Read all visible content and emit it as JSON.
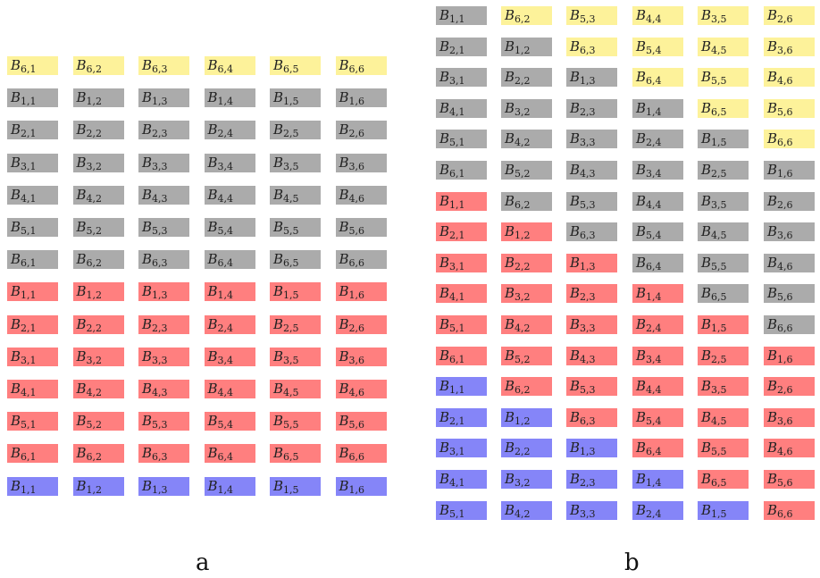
{
  "colors": {
    "yellow": "#fdf29a",
    "gray": "#ababab",
    "red": "#ff7f7f",
    "blue": "#8585f8"
  },
  "panel_a": {
    "label": "a",
    "rows": [
      {
        "color": "yellow",
        "cells": [
          [
            6,
            1
          ],
          [
            6,
            2
          ],
          [
            6,
            3
          ],
          [
            6,
            4
          ],
          [
            6,
            5
          ],
          [
            6,
            6
          ]
        ]
      },
      {
        "color": "gray",
        "cells": [
          [
            1,
            1
          ],
          [
            1,
            2
          ],
          [
            1,
            3
          ],
          [
            1,
            4
          ],
          [
            1,
            5
          ],
          [
            1,
            6
          ]
        ]
      },
      {
        "color": "gray",
        "cells": [
          [
            2,
            1
          ],
          [
            2,
            2
          ],
          [
            2,
            3
          ],
          [
            2,
            4
          ],
          [
            2,
            5
          ],
          [
            2,
            6
          ]
        ]
      },
      {
        "color": "gray",
        "cells": [
          [
            3,
            1
          ],
          [
            3,
            2
          ],
          [
            3,
            3
          ],
          [
            3,
            4
          ],
          [
            3,
            5
          ],
          [
            3,
            6
          ]
        ]
      },
      {
        "color": "gray",
        "cells": [
          [
            4,
            1
          ],
          [
            4,
            2
          ],
          [
            4,
            3
          ],
          [
            4,
            4
          ],
          [
            4,
            5
          ],
          [
            4,
            6
          ]
        ]
      },
      {
        "color": "gray",
        "cells": [
          [
            5,
            1
          ],
          [
            5,
            2
          ],
          [
            5,
            3
          ],
          [
            5,
            4
          ],
          [
            5,
            5
          ],
          [
            5,
            6
          ]
        ]
      },
      {
        "color": "gray",
        "cells": [
          [
            6,
            1
          ],
          [
            6,
            2
          ],
          [
            6,
            3
          ],
          [
            6,
            4
          ],
          [
            6,
            5
          ],
          [
            6,
            6
          ]
        ]
      },
      {
        "color": "red",
        "cells": [
          [
            1,
            1
          ],
          [
            1,
            2
          ],
          [
            1,
            3
          ],
          [
            1,
            4
          ],
          [
            1,
            5
          ],
          [
            1,
            6
          ]
        ]
      },
      {
        "color": "red",
        "cells": [
          [
            2,
            1
          ],
          [
            2,
            2
          ],
          [
            2,
            3
          ],
          [
            2,
            4
          ],
          [
            2,
            5
          ],
          [
            2,
            6
          ]
        ]
      },
      {
        "color": "red",
        "cells": [
          [
            3,
            1
          ],
          [
            3,
            2
          ],
          [
            3,
            3
          ],
          [
            3,
            4
          ],
          [
            3,
            5
          ],
          [
            3,
            6
          ]
        ]
      },
      {
        "color": "red",
        "cells": [
          [
            4,
            1
          ],
          [
            4,
            2
          ],
          [
            4,
            3
          ],
          [
            4,
            4
          ],
          [
            4,
            5
          ],
          [
            4,
            6
          ]
        ]
      },
      {
        "color": "red",
        "cells": [
          [
            5,
            1
          ],
          [
            5,
            2
          ],
          [
            5,
            3
          ],
          [
            5,
            4
          ],
          [
            5,
            5
          ],
          [
            5,
            6
          ]
        ]
      },
      {
        "color": "red",
        "cells": [
          [
            6,
            1
          ],
          [
            6,
            2
          ],
          [
            6,
            3
          ],
          [
            6,
            4
          ],
          [
            6,
            5
          ],
          [
            6,
            6
          ]
        ]
      },
      {
        "color": "blue",
        "cells": [
          [
            1,
            1
          ],
          [
            1,
            2
          ],
          [
            1,
            3
          ],
          [
            1,
            4
          ],
          [
            1,
            5
          ],
          [
            1,
            6
          ]
        ]
      }
    ]
  },
  "panel_b": {
    "label": "b",
    "columns": [
      [
        [
          "gray",
          1,
          1
        ],
        [
          "gray",
          2,
          1
        ],
        [
          "gray",
          3,
          1
        ],
        [
          "gray",
          4,
          1
        ],
        [
          "gray",
          5,
          1
        ],
        [
          "gray",
          6,
          1
        ],
        [
          "red",
          1,
          1
        ],
        [
          "red",
          2,
          1
        ],
        [
          "red",
          3,
          1
        ],
        [
          "red",
          4,
          1
        ],
        [
          "red",
          5,
          1
        ],
        [
          "red",
          6,
          1
        ],
        [
          "blue",
          1,
          1
        ],
        [
          "blue",
          2,
          1
        ],
        [
          "blue",
          3,
          1
        ],
        [
          "blue",
          4,
          1
        ],
        [
          "blue",
          5,
          1
        ]
      ],
      [
        [
          "yellow",
          6,
          2
        ],
        [
          "gray",
          1,
          2
        ],
        [
          "gray",
          2,
          2
        ],
        [
          "gray",
          3,
          2
        ],
        [
          "gray",
          4,
          2
        ],
        [
          "gray",
          5,
          2
        ],
        [
          "gray",
          6,
          2
        ],
        [
          "red",
          1,
          2
        ],
        [
          "red",
          2,
          2
        ],
        [
          "red",
          3,
          2
        ],
        [
          "red",
          4,
          2
        ],
        [
          "red",
          5,
          2
        ],
        [
          "red",
          6,
          2
        ],
        [
          "blue",
          1,
          2
        ],
        [
          "blue",
          2,
          2
        ],
        [
          "blue",
          3,
          2
        ],
        [
          "blue",
          4,
          2
        ]
      ],
      [
        [
          "yellow",
          5,
          3
        ],
        [
          "yellow",
          6,
          3
        ],
        [
          "gray",
          1,
          3
        ],
        [
          "gray",
          2,
          3
        ],
        [
          "gray",
          3,
          3
        ],
        [
          "gray",
          4,
          3
        ],
        [
          "gray",
          5,
          3
        ],
        [
          "gray",
          6,
          3
        ],
        [
          "red",
          1,
          3
        ],
        [
          "red",
          2,
          3
        ],
        [
          "red",
          3,
          3
        ],
        [
          "red",
          4,
          3
        ],
        [
          "red",
          5,
          3
        ],
        [
          "red",
          6,
          3
        ],
        [
          "blue",
          1,
          3
        ],
        [
          "blue",
          2,
          3
        ],
        [
          "blue",
          3,
          3
        ]
      ],
      [
        [
          "yellow",
          4,
          4
        ],
        [
          "yellow",
          5,
          4
        ],
        [
          "yellow",
          6,
          4
        ],
        [
          "gray",
          1,
          4
        ],
        [
          "gray",
          2,
          4
        ],
        [
          "gray",
          3,
          4
        ],
        [
          "gray",
          4,
          4
        ],
        [
          "gray",
          5,
          4
        ],
        [
          "gray",
          6,
          4
        ],
        [
          "red",
          1,
          4
        ],
        [
          "red",
          2,
          4
        ],
        [
          "red",
          3,
          4
        ],
        [
          "red",
          4,
          4
        ],
        [
          "red",
          5,
          4
        ],
        [
          "red",
          6,
          4
        ],
        [
          "blue",
          1,
          4
        ],
        [
          "blue",
          2,
          4
        ]
      ],
      [
        [
          "yellow",
          3,
          5
        ],
        [
          "yellow",
          4,
          5
        ],
        [
          "yellow",
          5,
          5
        ],
        [
          "yellow",
          6,
          5
        ],
        [
          "gray",
          1,
          5
        ],
        [
          "gray",
          2,
          5
        ],
        [
          "gray",
          3,
          5
        ],
        [
          "gray",
          4,
          5
        ],
        [
          "gray",
          5,
          5
        ],
        [
          "gray",
          6,
          5
        ],
        [
          "red",
          1,
          5
        ],
        [
          "red",
          2,
          5
        ],
        [
          "red",
          3,
          5
        ],
        [
          "red",
          4,
          5
        ],
        [
          "red",
          5,
          5
        ],
        [
          "red",
          6,
          5
        ],
        [
          "blue",
          1,
          5
        ]
      ],
      [
        [
          "yellow",
          2,
          6
        ],
        [
          "yellow",
          3,
          6
        ],
        [
          "yellow",
          4,
          6
        ],
        [
          "yellow",
          5,
          6
        ],
        [
          "yellow",
          6,
          6
        ],
        [
          "gray",
          1,
          6
        ],
        [
          "gray",
          2,
          6
        ],
        [
          "gray",
          3,
          6
        ],
        [
          "gray",
          4,
          6
        ],
        [
          "gray",
          5,
          6
        ],
        [
          "gray",
          6,
          6
        ],
        [
          "red",
          1,
          6
        ],
        [
          "red",
          2,
          6
        ],
        [
          "red",
          3,
          6
        ],
        [
          "red",
          4,
          6
        ],
        [
          "red",
          5,
          6
        ],
        [
          "red",
          6,
          6
        ]
      ]
    ]
  }
}
